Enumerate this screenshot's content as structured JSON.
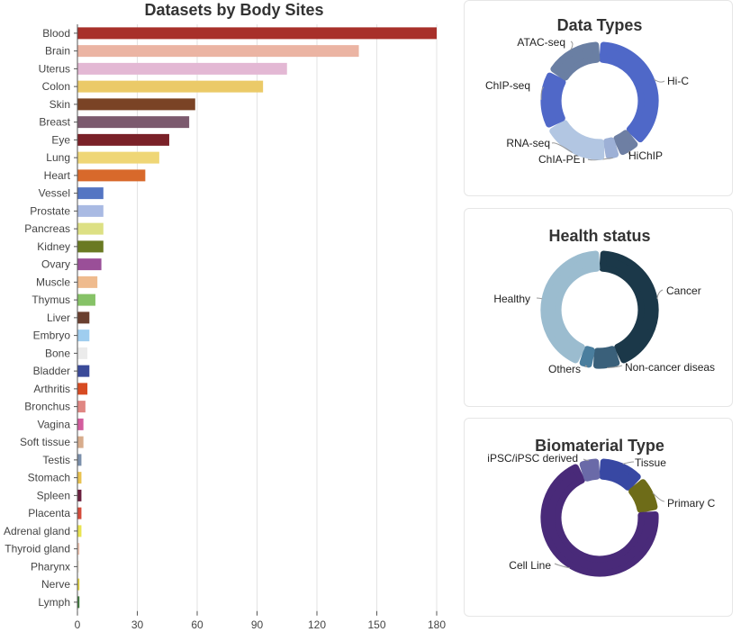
{
  "chart_data": [
    {
      "type": "bar",
      "orientation": "horizontal",
      "title": "Datasets by Body Sites",
      "categories": [
        "Blood",
        "Brain",
        "Uterus",
        "Colon",
        "Skin",
        "Breast",
        "Eye",
        "Lung",
        "Heart",
        "Vessel",
        "Prostate",
        "Pancreas",
        "Kidney",
        "Ovary",
        "Muscle",
        "Thymus",
        "Liver",
        "Embryo",
        "Bone",
        "Bladder",
        "Arthritis",
        "Bronchus",
        "Vagina",
        "Soft tissue",
        "Testis",
        "Stomach",
        "Spleen",
        "Placenta",
        "Adrenal gland",
        "Thyroid gland",
        "Pharynx",
        "Nerve",
        "Lymph"
      ],
      "values": [
        180,
        141,
        105,
        93,
        59,
        56,
        46,
        41,
        34,
        13,
        13,
        13,
        13,
        12,
        10,
        9,
        6,
        6,
        5,
        6,
        5,
        4,
        3,
        3,
        2,
        2,
        2,
        2,
        2,
        1,
        1,
        1,
        1
      ],
      "colors": [
        "#a8302a",
        "#ebb4a3",
        "#e3b8d4",
        "#ebca68",
        "#7a4325",
        "#7c5a6e",
        "#7a2128",
        "#efd676",
        "#d8692b",
        "#5475c3",
        "#a9bae3",
        "#dde084",
        "#6a7a23",
        "#9a4f98",
        "#efbb8e",
        "#86c267",
        "#6a3f2f",
        "#9fcdef",
        "#ebebeb",
        "#3a4a99",
        "#d74b22",
        "#e08783",
        "#d35d9e",
        "#d8ac8c",
        "#7a8fab",
        "#e9c24f",
        "#6a1f3e",
        "#d44a3a",
        "#e9e44f",
        "#f2c6b3",
        "#f5eee5",
        "#e3d23f",
        "#3d7a3a"
      ],
      "xticks": [
        0,
        30,
        60,
        90,
        120,
        150,
        180
      ],
      "xlim": [
        0,
        180
      ],
      "grid": true
    },
    {
      "type": "pie",
      "style": "donut",
      "title": "Data Types",
      "labels": [
        "Hi-C",
        "HiChIP",
        "ChIA-PET",
        "RNA-seq",
        "ChIP-seq",
        "ATAC-seq"
      ],
      "values": [
        37,
        6,
        4,
        18,
        16,
        16
      ],
      "colors": [
        "#4f68c8",
        "#6e7fa3",
        "#9db0d6",
        "#b2c6e2",
        "#5068c8",
        "#6a7fa3"
      ]
    },
    {
      "type": "pie",
      "style": "donut",
      "title": "Health status",
      "labels": [
        "Cancer",
        "Non-cancer diseas",
        "Others",
        "Healthy"
      ],
      "values": [
        44,
        8,
        4,
        44
      ],
      "colors": [
        "#1b3849",
        "#3a607a",
        "#4a7e9e",
        "#9bbccf"
      ]
    },
    {
      "type": "pie",
      "style": "donut",
      "title": "Biomaterial Type",
      "labels": [
        "Tissue",
        "Primary C",
        "Cell Line",
        "iPSC/iPSC derived"
      ],
      "values": [
        13,
        10,
        71,
        6
      ],
      "colors": [
        "#3848a3",
        "#6e6c18",
        "#492a79",
        "#6a6aa8"
      ]
    }
  ]
}
